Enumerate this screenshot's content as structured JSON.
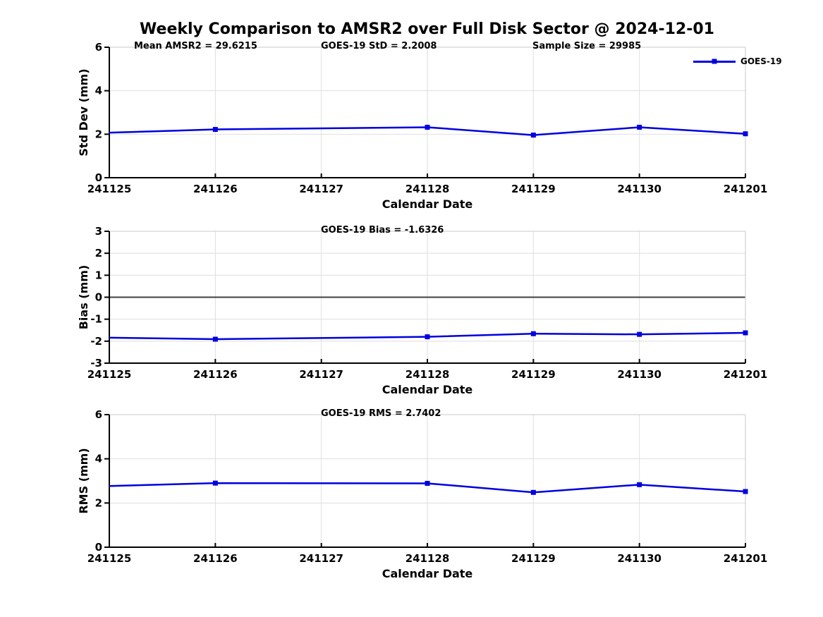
{
  "title": "Weekly Comparison to AMSR2 over Full Disk Sector @ 2024-12-01",
  "legend": {
    "label": "GOES-19"
  },
  "colors": {
    "line": "#0000e0",
    "grid": "#dedede",
    "axis": "#000000",
    "box_edge": "#c9c9c9",
    "zero_line": "#404040",
    "background": "#ffffff"
  },
  "chart_data": [
    {
      "type": "line",
      "series_name": "GOES-19",
      "ylabel": "Std Dev (mm)",
      "xlabel": "Calendar Date",
      "categories": [
        "241125",
        "241126",
        "241127",
        "241128",
        "241129",
        "241130",
        "241201"
      ],
      "values": [
        2.07,
        2.22,
        null,
        2.32,
        1.96,
        2.32,
        2.02
      ],
      "markers": [
        false,
        true,
        false,
        true,
        true,
        true,
        true
      ],
      "ylim": [
        0,
        6
      ],
      "yticks": [
        0,
        2,
        4,
        6
      ],
      "zero_line": false,
      "grid": true,
      "legend_position": "top-right-outside",
      "annotations": [
        "Mean AMSR2 = 29.6215",
        "GOES-19 StD = 2.2008",
        "Sample Size = 29985"
      ]
    },
    {
      "type": "line",
      "series_name": "GOES-19",
      "ylabel": "Bias (mm)",
      "xlabel": "Calendar Date",
      "categories": [
        "241125",
        "241126",
        "241127",
        "241128",
        "241129",
        "241130",
        "241201"
      ],
      "values": [
        -1.84,
        -1.91,
        null,
        -1.8,
        -1.66,
        -1.69,
        -1.62
      ],
      "markers": [
        false,
        true,
        false,
        true,
        true,
        true,
        true
      ],
      "ylim": [
        -3,
        3
      ],
      "yticks": [
        -3,
        -2,
        -1,
        0,
        1,
        2,
        3
      ],
      "zero_line": true,
      "grid": true,
      "annotations": [
        "GOES-19 Bias  = -1.6326"
      ]
    },
    {
      "type": "line",
      "series_name": "GOES-19",
      "ylabel": "RMS (mm)",
      "xlabel": "Calendar Date",
      "categories": [
        "241125",
        "241126",
        "241127",
        "241128",
        "241129",
        "241130",
        "241201"
      ],
      "values": [
        2.77,
        2.9,
        null,
        2.89,
        2.48,
        2.83,
        2.52
      ],
      "markers": [
        false,
        true,
        false,
        true,
        true,
        true,
        true
      ],
      "ylim": [
        0,
        6
      ],
      "yticks": [
        0,
        2,
        4,
        6
      ],
      "zero_line": false,
      "grid": true,
      "annotations": [
        "GOES-19 RMS = 2.7402"
      ]
    }
  ]
}
